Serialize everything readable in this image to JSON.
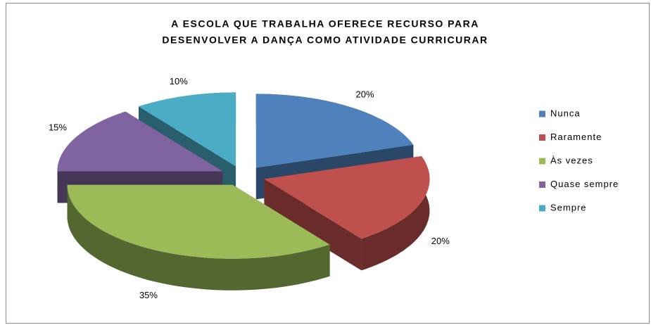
{
  "chart_data": {
    "type": "pie3d",
    "title": [
      "A ESCOLA QUE TRABALHA OFERECE RECURSO PARA",
      "DESENVOLVER A DANÇA COMO ATIVIDADE CURRICURAR"
    ],
    "categories": [
      "Nunca",
      "Raramente",
      "Às vezes",
      "Quase sempre",
      "Sempre"
    ],
    "values": [
      20,
      20,
      35,
      15,
      10
    ],
    "value_labels": [
      "20%",
      "20%",
      "35%",
      "15%",
      "10%"
    ],
    "colors": [
      "#4f81bd",
      "#c0504d",
      "#9bbb59",
      "#8064a2",
      "#4bacc6"
    ],
    "legend": "right"
  }
}
